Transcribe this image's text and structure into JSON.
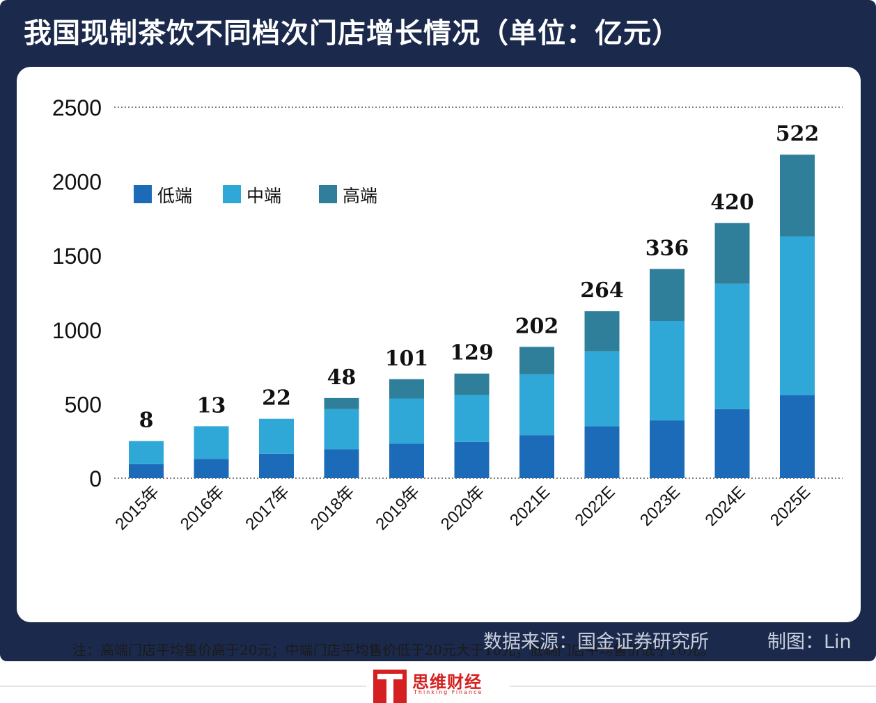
{
  "header": {
    "title": "我国现制茶饮不同档次门店增长情况（单位：亿元）"
  },
  "chart_data": {
    "type": "bar",
    "stacked": true,
    "categories": [
      "2015年",
      "2016年",
      "2017年",
      "2018年",
      "2019年",
      "2020年",
      "2021E",
      "2022E",
      "2023E",
      "2024E",
      "2025E"
    ],
    "series": [
      {
        "name": "低端",
        "color": "#1c6bb8",
        "values": [
          95,
          130,
          165,
          195,
          232,
          245,
          290,
          350,
          390,
          465,
          560
        ]
      },
      {
        "name": "中端",
        "color": "#2fa8d8",
        "values": [
          155,
          220,
          235,
          270,
          305,
          315,
          410,
          505,
          670,
          845,
          1070
        ]
      },
      {
        "name": "高端",
        "color": "#2f7f9a",
        "values": [
          0,
          0,
          0,
          75,
          130,
          145,
          185,
          270,
          350,
          410,
          550
        ]
      }
    ],
    "data_labels": [
      "8",
      "13",
      "22",
      "48",
      "101",
      "129",
      "202",
      "264",
      "336",
      "420",
      "522"
    ],
    "y_ticks": [
      0,
      500,
      1000,
      1500,
      2000,
      2500
    ],
    "ylim": [
      0,
      2500
    ],
    "legend_position": "top-left",
    "grid": "dotted lines at 0 and 2500"
  },
  "footnote": "注：高端门店平均售价高于20元；中端门店平均售价低于20元大于10元；低端门店平均售价低于10元。",
  "source": "数据来源：国金证券研究所",
  "credit": "制图：Lin",
  "logo": {
    "name": "思维财经",
    "sub": "Thinking Finance"
  }
}
